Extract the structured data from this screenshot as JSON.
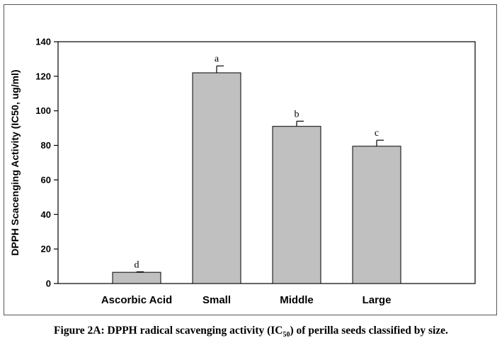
{
  "chart_data": {
    "type": "bar",
    "ylabel": "DPPH Scacenging Activity (IC50, ug/ml)",
    "xlabel": "",
    "ylim": [
      0,
      140
    ],
    "yticks": [
      0,
      20,
      40,
      60,
      80,
      100,
      120,
      140
    ],
    "categories": [
      "Ascorbic Acid",
      "Small",
      "Middle",
      "Large"
    ],
    "values": [
      6.5,
      122,
      91,
      79.5
    ],
    "errors": [
      0.3,
      4,
      3,
      3.5
    ],
    "significance": [
      "d",
      "a",
      "b",
      "c"
    ],
    "grid": false,
    "colors": {
      "bar_fill": "#c0c0c0",
      "bar_stroke": "#000000"
    }
  },
  "caption": {
    "prefix": "Figure 2A: DPPH radical scavenging activity (IC",
    "subscript": "50",
    "suffix": ") of perilla seeds classified by size."
  }
}
